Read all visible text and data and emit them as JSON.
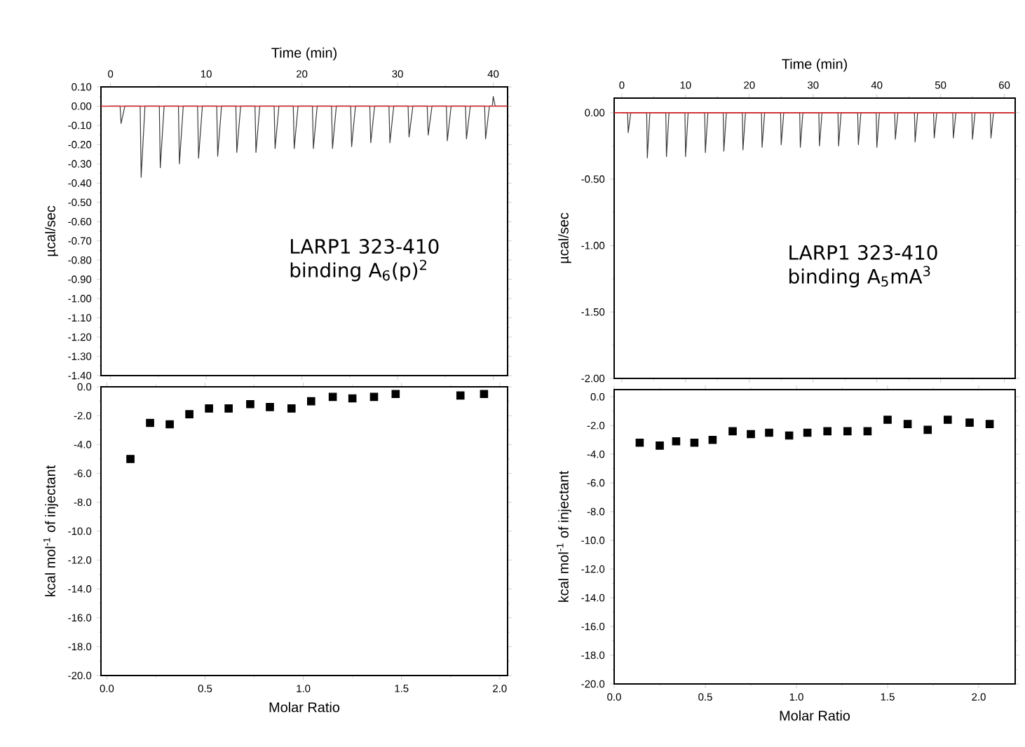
{
  "chart_data": [
    {
      "type": "line",
      "xlabel": "Time (min)",
      "ylabel": "µcal/sec",
      "marker": "none",
      "line_style": "solid",
      "xlim": [
        -1,
        41.5
      ],
      "ylim": [
        -1.4,
        0.1
      ],
      "xticks": [
        0,
        10,
        20,
        30,
        40
      ],
      "yticks": [
        {
          "value": 0.1,
          "label": "0.10"
        },
        {
          "value": 0,
          "label": "0.00"
        },
        {
          "value": -0.1,
          "label": "-0.10"
        },
        {
          "value": -0.2,
          "label": "-0.20"
        },
        {
          "value": -0.3,
          "label": "-0.30"
        },
        {
          "value": -0.4,
          "label": "-0.40"
        },
        {
          "value": -0.5,
          "label": "-0.50"
        },
        {
          "value": -0.6,
          "label": "-0.60"
        },
        {
          "value": -0.7,
          "label": "-0.70"
        },
        {
          "value": -0.8,
          "label": "-0.80"
        },
        {
          "value": -0.9,
          "label": "-0.90"
        },
        {
          "value": -1.0,
          "label": "-1.00"
        },
        {
          "value": -1.1,
          "label": "-1.10"
        },
        {
          "value": -1.2,
          "label": "-1.20"
        },
        {
          "value": -1.3,
          "label": "-1.30"
        },
        {
          "value": -1.4,
          "label": "-1.40"
        }
      ],
      "series": [
        {
          "color": "#3a3a3a",
          "x": [
            0,
            1.0,
            1.1,
            1.5,
            3.1,
            3.2,
            3.6,
            5.1,
            5.2,
            5.6,
            7.1,
            7.2,
            7.6,
            9.1,
            9.2,
            9.6,
            11.1,
            11.2,
            11.6,
            13.1,
            13.2,
            13.6,
            15.1,
            15.2,
            15.6,
            17.1,
            17.2,
            17.6,
            19.1,
            19.2,
            19.6,
            21.1,
            21.2,
            21.6,
            23.1,
            23.2,
            23.6,
            25.1,
            25.2,
            25.6,
            27.1,
            27.2,
            27.6,
            29.1,
            29.2,
            29.6,
            31.1,
            31.2,
            31.6,
            33.1,
            33.2,
            33.6,
            35.1,
            35.2,
            35.6,
            37.1,
            37.2,
            37.6,
            39.1,
            39.2,
            39.6,
            39.9,
            40.0,
            40.2,
            41.4
          ],
          "values": [
            0,
            0,
            -0.09,
            0,
            0,
            -0.37,
            0,
            0,
            -0.32,
            0,
            0,
            -0.3,
            0,
            0,
            -0.27,
            0,
            0,
            -0.26,
            0,
            0,
            -0.24,
            0,
            0,
            -0.24,
            0,
            0,
            -0.22,
            0,
            0,
            -0.22,
            0,
            0,
            -0.22,
            0,
            0,
            -0.22,
            0,
            0,
            -0.21,
            0,
            0,
            -0.19,
            0,
            0,
            -0.19,
            0,
            0,
            -0.16,
            0,
            0,
            -0.15,
            0,
            0,
            -0.18,
            0,
            0,
            -0.17,
            0,
            0,
            -0.17,
            0,
            0,
            0.05,
            0,
            0
          ]
        }
      ],
      "ref_lines": [
        {
          "axis": "y",
          "value": 0,
          "color": "#d62728"
        }
      ],
      "annotations": [
        "LARP1 323-410 binding A$_{6}$(p)$^{2}$"
      ]
    },
    {
      "type": "line",
      "xlabel": "Time (min)",
      "ylabel": "µcal/sec",
      "marker": "none",
      "line_style": "solid",
      "xlim": [
        -1.2,
        61.7
      ],
      "ylim": [
        -2.0,
        0.11
      ],
      "xticks": [
        0,
        10,
        20,
        30,
        40,
        50,
        60
      ],
      "yticks": [
        {
          "value": 0,
          "label": "0.00"
        },
        {
          "value": -0.5,
          "label": "-0.50"
        },
        {
          "value": -1.0,
          "label": "-1.00"
        },
        {
          "value": -1.5,
          "label": "-1.50"
        },
        {
          "value": -2.0,
          "label": "-2.00"
        }
      ],
      "series": [
        {
          "color": "#3a3a3a",
          "x": [
            0,
            0.9,
            1,
            1.4,
            3.9,
            4,
            4.4,
            6.9,
            7,
            7.4,
            9.9,
            10,
            10.4,
            13,
            13.1,
            13.5,
            15.9,
            16,
            16.4,
            18.9,
            19,
            19.4,
            21.9,
            22,
            22.4,
            24.9,
            25,
            25.4,
            27.9,
            28,
            28.4,
            30.9,
            31,
            31.4,
            33.9,
            34,
            34.4,
            37,
            37.1,
            37.5,
            39.9,
            40,
            40.4,
            42.8,
            42.9,
            43.3,
            45.9,
            46,
            46.4,
            48.9,
            49,
            49.4,
            51.9,
            52,
            52.4,
            54.9,
            55,
            55.4,
            57.8,
            57.9,
            58.3,
            61.5
          ],
          "values": [
            0,
            0,
            -0.15,
            0,
            0,
            -0.34,
            0,
            0,
            -0.33,
            0,
            0,
            -0.33,
            0,
            0,
            -0.3,
            0,
            0,
            -0.29,
            0,
            0,
            -0.28,
            0,
            0,
            -0.26,
            0,
            0,
            -0.24,
            0,
            0,
            -0.26,
            0,
            0,
            -0.25,
            0,
            0,
            -0.25,
            0,
            0,
            -0.24,
            0,
            0,
            -0.26,
            0,
            0,
            -0.2,
            0,
            0,
            -0.22,
            0,
            0,
            -0.19,
            0,
            0,
            -0.19,
            0,
            0,
            -0.2,
            0,
            0,
            -0.19,
            0,
            0
          ]
        }
      ],
      "ref_lines": [
        {
          "axis": "y",
          "value": 0,
          "color": "#d62728"
        }
      ],
      "annotations": [
        "LARP1 323-410 binding A$_{5}$mA$^{3}$"
      ]
    },
    {
      "type": "scatter",
      "xlabel": "Molar Ratio",
      "ylabel": "kcal mol$^{-1}$ of injectant",
      "marker": "square",
      "xlim": [
        -0.03,
        2.04
      ],
      "ylim": [
        -20,
        0
      ],
      "xticks": [
        {
          "value": 0,
          "label": "0.0"
        },
        0.5,
        {
          "value": 1,
          "label": "1.0"
        },
        1.5,
        {
          "value": 2,
          "label": "2.0"
        }
      ],
      "yticks": [
        {
          "value": 0,
          "label": "0.0"
        },
        {
          "value": -2,
          "label": "-2.0"
        },
        {
          "value": -4,
          "label": "-4.0"
        },
        {
          "value": -6,
          "label": "-6.0"
        },
        {
          "value": -8,
          "label": "-8.0"
        },
        {
          "value": -10,
          "label": "-10.0"
        },
        {
          "value": -12,
          "label": "-12.0"
        },
        {
          "value": -14,
          "label": "-14.0"
        },
        {
          "value": -16,
          "label": "-16.0"
        },
        {
          "value": -18,
          "label": "-18.0"
        },
        {
          "value": -20,
          "label": "-20.0"
        }
      ],
      "series": [
        {
          "color": "#000000",
          "x": [
            0.12,
            0.22,
            0.32,
            0.42,
            0.52,
            0.62,
            0.73,
            0.83,
            0.94,
            1.04,
            1.15,
            1.25,
            1.36,
            1.47,
            1.8,
            1.92
          ],
          "values": [
            -5.0,
            -2.5,
            -2.6,
            -1.9,
            -1.5,
            -1.5,
            -1.2,
            -1.4,
            -1.5,
            -1.0,
            -0.7,
            -0.8,
            -0.7,
            -0.5,
            -0.6,
            -0.5
          ]
        }
      ]
    },
    {
      "type": "scatter",
      "xlabel": "Molar Ratio",
      "ylabel": "kcal mol$^{-1}$ of injectant",
      "marker": "square",
      "xlim": [
        0,
        2.2
      ],
      "ylim": [
        -20,
        0.5
      ],
      "xticks": [
        {
          "value": 0,
          "label": "0.0"
        },
        0.5,
        {
          "value": 1,
          "label": "1.0"
        },
        1.5,
        {
          "value": 2,
          "label": "2.0"
        }
      ],
      "yticks": [
        {
          "value": 0,
          "label": "0.0"
        },
        {
          "value": -2,
          "label": "-2.0"
        },
        {
          "value": -4,
          "label": "-4.0"
        },
        {
          "value": -6,
          "label": "-6.0"
        },
        {
          "value": -8,
          "label": "-8.0"
        },
        {
          "value": -10,
          "label": "-10.0"
        },
        {
          "value": -12,
          "label": "-12.0"
        },
        {
          "value": -14,
          "label": "-14.0"
        },
        {
          "value": -16,
          "label": "-16.0"
        },
        {
          "value": -18,
          "label": "-18.0"
        },
        {
          "value": -20,
          "label": "-20.0"
        }
      ],
      "series": [
        {
          "color": "#000000",
          "x": [
            0.14,
            0.25,
            0.34,
            0.44,
            0.54,
            0.65,
            0.75,
            0.85,
            0.96,
            1.06,
            1.17,
            1.28,
            1.39,
            1.5,
            1.61,
            1.72,
            1.83,
            1.95,
            2.06
          ],
          "values": [
            -3.2,
            -3.4,
            -3.1,
            -3.2,
            -3.0,
            -2.4,
            -2.6,
            -2.5,
            -2.7,
            -2.5,
            -2.4,
            -2.4,
            -2.4,
            -1.6,
            -1.9,
            -2.3,
            -1.6,
            -1.8,
            -1.9
          ]
        }
      ]
    }
  ]
}
